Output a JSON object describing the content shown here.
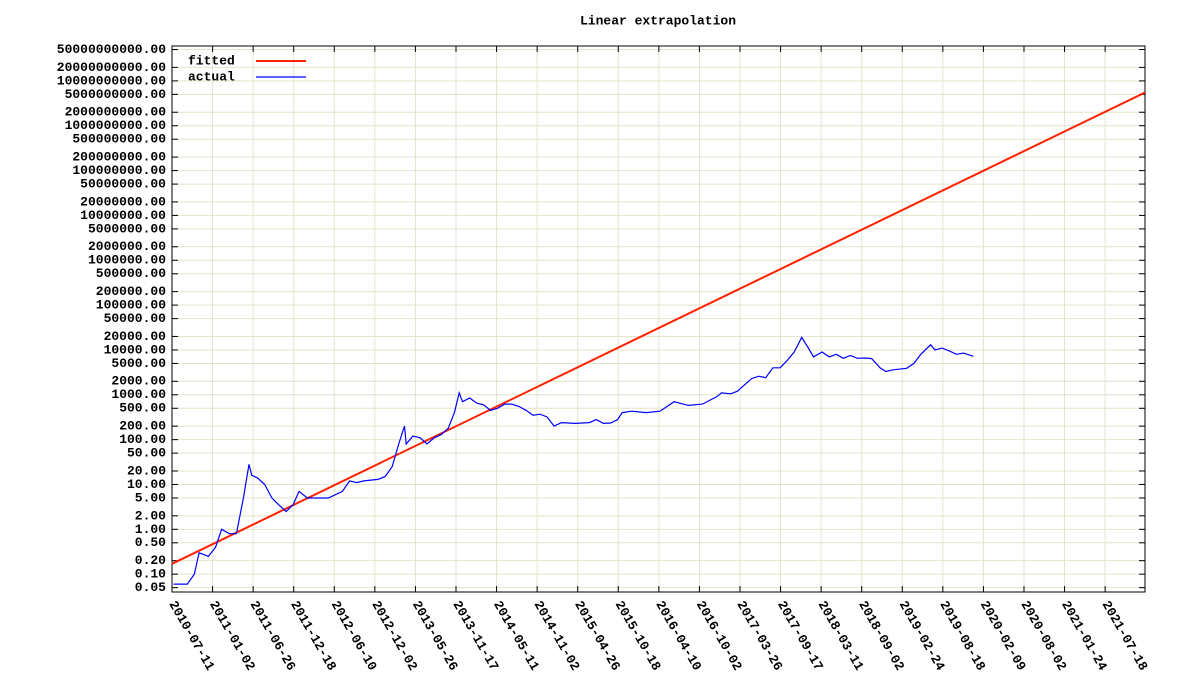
{
  "chart_data": {
    "type": "line",
    "title": "Linear extrapolation",
    "log_y": true,
    "grid": true,
    "legend": "upper left",
    "xlim": [
      "2010-07-11",
      "2022-01-06"
    ],
    "xticks": [
      "2010-07-11",
      "2011-01-02",
      "2011-06-26",
      "2011-12-18",
      "2012-06-10",
      "2012-12-02",
      "2013-05-26",
      "2013-11-17",
      "2014-05-11",
      "2014-11-02",
      "2015-04-26",
      "2015-10-18",
      "2016-04-10",
      "2016-10-02",
      "2017-03-26",
      "2017-09-17",
      "2018-03-11",
      "2018-09-02",
      "2019-02-24",
      "2019-08-18",
      "2020-02-09",
      "2020-08-02",
      "2021-01-24",
      "2021-07-18"
    ],
    "ylim": [
      0.04,
      60000000000
    ],
    "yticks": [
      {
        "value": 0.05,
        "label": "0.05"
      },
      {
        "value": 0.1,
        "label": "0.10"
      },
      {
        "value": 0.2,
        "label": "0.20"
      },
      {
        "value": 0.5,
        "label": "0.50"
      },
      {
        "value": 1,
        "label": "1.00"
      },
      {
        "value": 2,
        "label": "2.00"
      },
      {
        "value": 5,
        "label": "5.00"
      },
      {
        "value": 10,
        "label": "10.00"
      },
      {
        "value": 20,
        "label": "20.00"
      },
      {
        "value": 50,
        "label": "50.00"
      },
      {
        "value": 100,
        "label": "100.00"
      },
      {
        "value": 200,
        "label": "200.00"
      },
      {
        "value": 500,
        "label": "500.00"
      },
      {
        "value": 1000,
        "label": "1000.00"
      },
      {
        "value": 2000,
        "label": "2000.00"
      },
      {
        "value": 5000,
        "label": "5000.00"
      },
      {
        "value": 10000,
        "label": "10000.00"
      },
      {
        "value": 20000,
        "label": "20000.00"
      },
      {
        "value": 50000,
        "label": "50000.00"
      },
      {
        "value": 100000,
        "label": "100000.00"
      },
      {
        "value": 200000,
        "label": "200000.00"
      },
      {
        "value": 500000,
        "label": "500000.00"
      },
      {
        "value": 1000000,
        "label": "1000000.00"
      },
      {
        "value": 2000000,
        "label": "2000000.00"
      },
      {
        "value": 5000000,
        "label": "5000000.00"
      },
      {
        "value": 10000000,
        "label": "10000000.00"
      },
      {
        "value": 20000000,
        "label": "20000000.00"
      },
      {
        "value": 50000000,
        "label": "50000000.00"
      },
      {
        "value": 100000000,
        "label": "100000000.00"
      },
      {
        "value": 200000000,
        "label": "200000000.00"
      },
      {
        "value": 500000000,
        "label": "500000000.00"
      },
      {
        "value": 1000000000,
        "label": "1000000000.00"
      },
      {
        "value": 2000000000,
        "label": "2000000000.00"
      },
      {
        "value": 5000000000,
        "label": "5000000000.00"
      },
      {
        "value": 10000000000,
        "label": "10000000000.00"
      },
      {
        "value": 20000000000,
        "label": "20000000000.00"
      },
      {
        "value": 50000000000,
        "label": "50000000000.00"
      }
    ],
    "series": [
      {
        "name": "fitted",
        "color": "#ff2200",
        "x": [
          "2010-07-11",
          "2022-01-06"
        ],
        "values": [
          0.17,
          5500000000
        ]
      },
      {
        "name": "actual",
        "color": "#0000ff",
        "x": [
          "2010-07-18",
          "2010-09-15",
          "2010-10-15",
          "2010-11-05",
          "2010-12-15",
          "2011-01-15",
          "2011-02-10",
          "2011-03-15",
          "2011-04-15",
          "2011-05-15",
          "2011-06-08",
          "2011-06-20",
          "2011-07-15",
          "2011-08-15",
          "2011-09-15",
          "2011-10-15",
          "2011-11-15",
          "2011-12-15",
          "2012-01-10",
          "2012-02-15",
          "2012-03-15",
          "2012-05-15",
          "2012-07-15",
          "2012-08-15",
          "2012-09-15",
          "2012-10-15",
          "2012-12-15",
          "2013-01-15",
          "2013-02-15",
          "2013-03-15",
          "2013-04-09",
          "2013-04-16",
          "2013-05-15",
          "2013-06-15",
          "2013-07-15",
          "2013-08-15",
          "2013-09-15",
          "2013-10-15",
          "2013-11-10",
          "2013-12-01",
          "2013-12-15",
          "2014-01-15",
          "2014-02-15",
          "2014-03-15",
          "2014-04-15",
          "2014-05-15",
          "2014-06-15",
          "2014-07-15",
          "2014-08-15",
          "2014-09-15",
          "2014-10-15",
          "2014-11-15",
          "2014-12-15",
          "2015-01-14",
          "2015-02-15",
          "2015-04-15",
          "2015-06-15",
          "2015-07-15",
          "2015-08-15",
          "2015-09-15",
          "2015-10-15",
          "2015-11-04",
          "2015-12-15",
          "2016-02-15",
          "2016-04-15",
          "2016-06-15",
          "2016-08-15",
          "2016-10-15",
          "2016-12-15",
          "2017-01-05",
          "2017-02-15",
          "2017-03-15",
          "2017-05-15",
          "2017-06-15",
          "2017-07-15",
          "2017-08-15",
          "2017-09-15",
          "2017-10-15",
          "2017-11-15",
          "2017-12-17",
          "2018-01-15",
          "2018-02-06",
          "2018-03-15",
          "2018-04-15",
          "2018-05-15",
          "2018-06-15",
          "2018-07-15",
          "2018-08-15",
          "2018-09-15",
          "2018-10-15",
          "2018-11-20",
          "2018-12-15",
          "2019-01-15",
          "2019-03-15",
          "2019-04-15",
          "2019-05-15",
          "2019-06-26",
          "2019-07-15",
          "2019-08-15",
          "2019-09-15",
          "2019-10-15",
          "2019-11-15",
          "2019-12-28"
        ],
        "values": [
          0.06,
          0.06,
          0.1,
          0.3,
          0.25,
          0.4,
          1.0,
          0.8,
          0.8,
          5,
          28,
          16,
          14,
          10,
          5,
          3.5,
          2.5,
          3.5,
          7,
          5,
          5,
          5,
          7,
          12,
          11,
          12,
          13,
          15,
          25,
          80,
          200,
          80,
          120,
          110,
          80,
          110,
          130,
          180,
          400,
          1100,
          700,
          850,
          650,
          600,
          450,
          500,
          620,
          620,
          550,
          450,
          350,
          370,
          320,
          200,
          240,
          230,
          240,
          280,
          230,
          235,
          280,
          400,
          430,
          400,
          430,
          700,
          580,
          620,
          900,
          1100,
          1050,
          1200,
          2300,
          2600,
          2400,
          4000,
          4000,
          5800,
          9000,
          19000,
          11000,
          7000,
          9000,
          7000,
          8000,
          6500,
          7500,
          6500,
          6600,
          6400,
          4000,
          3300,
          3600,
          3900,
          5000,
          8000,
          13000,
          10000,
          11000,
          9500,
          8000,
          8500,
          7200
        ]
      }
    ]
  }
}
